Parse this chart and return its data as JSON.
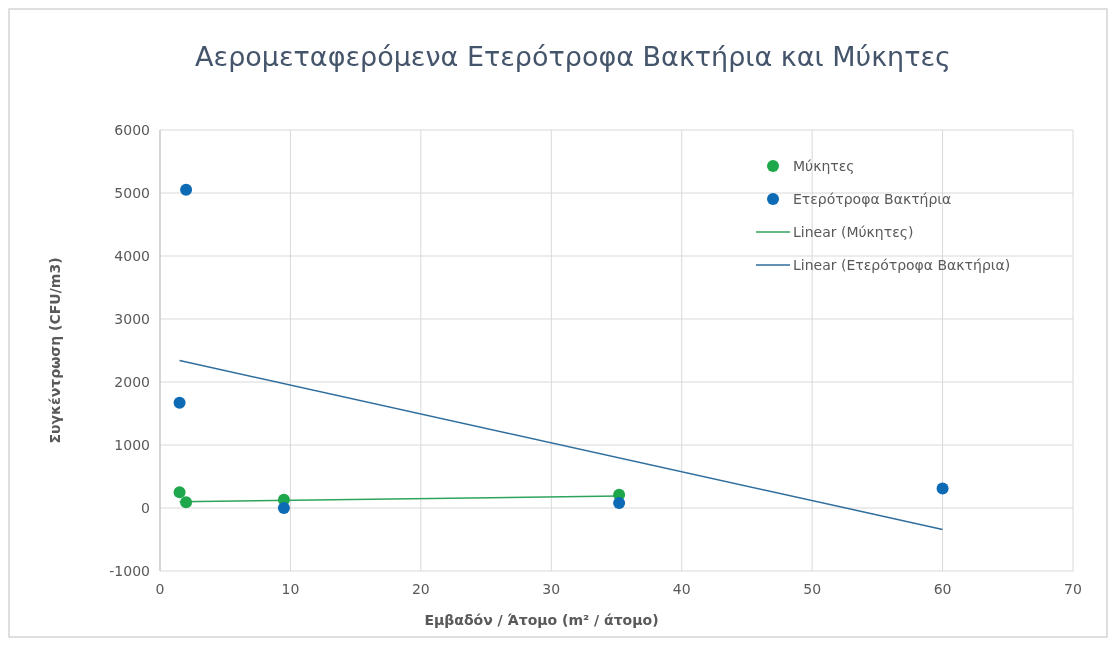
{
  "chart_data": {
    "type": "scatter",
    "title": "Αερομεταφερόμενα Ετερότροφα Βακτήρια και Μύκητες",
    "xlabel": "Εμβαδόν / Άτομο (m² / άτομο)",
    "ylabel": "Συγκέντρωση (CFU/m3)",
    "xlim": [
      0,
      70
    ],
    "xticks": [
      0,
      10,
      20,
      30,
      40,
      50,
      60,
      70
    ],
    "ylim": [
      -1000,
      6000
    ],
    "yticks": [
      -1000,
      0,
      1000,
      2000,
      3000,
      4000,
      5000,
      6000
    ],
    "grid": true,
    "legend": "top right",
    "series": [
      {
        "name": "Μύκητες",
        "color": "#1ea84b",
        "marker": "circle",
        "x": [
          1.5,
          2.0,
          9.5,
          35.2
        ],
        "values": [
          250,
          90,
          130,
          210
        ]
      },
      {
        "name": "Ετερότροφα Βακτήρια",
        "color": "#0d6ab4",
        "marker": "circle",
        "x": [
          2.0,
          1.5,
          9.5,
          35.2,
          60
        ],
        "values": [
          5050,
          1670,
          0,
          80,
          310
        ]
      },
      {
        "name": "Linear (Μύκητες)",
        "type": "line",
        "color": "#2ea35c",
        "marker": "none",
        "x": [
          1.5,
          35.2
        ],
        "values": [
          100,
          190
        ]
      },
      {
        "name": "Linear (Ετερότροφα Βακτήρια)",
        "type": "line",
        "color": "#2f6d9c",
        "marker": "none",
        "x": [
          1.5,
          60
        ],
        "values": [
          2340,
          -340
        ]
      }
    ]
  }
}
